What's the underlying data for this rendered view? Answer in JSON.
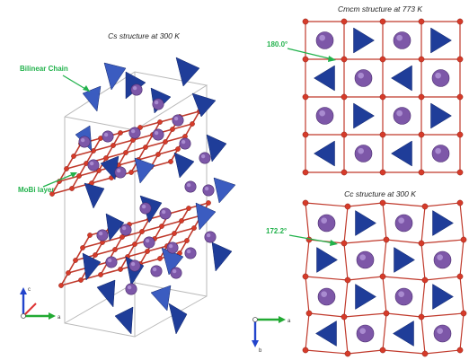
{
  "panels": {
    "left_title": "Cs structure at 300 K",
    "top_right_title": "Cmcm structure at 773 K",
    "bottom_right_title": "Cc structure at 300 K"
  },
  "labels": {
    "bilinear_chain": "Bilinear Chain",
    "molib_layer": "MoBi layer",
    "angle_top": "180.0°",
    "angle_bottom": "172.2°"
  },
  "axes": {
    "left_vertical": "c",
    "left_horizontal": "a",
    "right_horizontal": "a",
    "right_vertical": "b"
  },
  "colors": {
    "cation": "#7d57a8",
    "oxygen": "#d63b2a",
    "tetrahedra": "#1f3d99",
    "annotation": "#22b24c",
    "axis_x": "#22aa33",
    "axis_y": "#d33",
    "axis_z": "#2244cc"
  }
}
